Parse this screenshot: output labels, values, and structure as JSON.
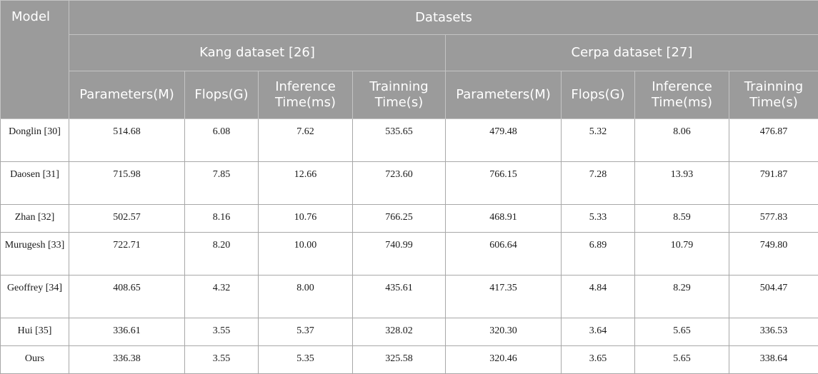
{
  "header": {
    "model": "Model",
    "datasets": "Datasets",
    "groups": [
      "Kang dataset [26]",
      "Cerpa dataset [27]"
    ],
    "metrics": [
      "Parameters(M)",
      "Flops(G)",
      "Inference Time(ms)",
      "Trainning Time(s)"
    ]
  },
  "rows": [
    {
      "model": "Donglin [30]",
      "cells": [
        "514.68",
        "6.08",
        "7.62",
        "535.65",
        "479.48",
        "5.32",
        "8.06",
        "476.87"
      ]
    },
    {
      "model": "Daosen [31]",
      "cells": [
        "715.98",
        "7.85",
        "12.66",
        "723.60",
        "766.15",
        "7.28",
        "13.93",
        "791.87"
      ]
    },
    {
      "model": "Zhan [32]",
      "cells": [
        "502.57",
        "8.16",
        "10.76",
        "766.25",
        "468.91",
        "5.33",
        "8.59",
        "577.83"
      ]
    },
    {
      "model": "Murugesh [33]",
      "cells": [
        "722.71",
        "8.20",
        "10.00",
        "740.99",
        "606.64",
        "6.89",
        "10.79",
        "749.80"
      ]
    },
    {
      "model": "Geoffrey [34]",
      "cells": [
        "408.65",
        "4.32",
        "8.00",
        "435.61",
        "417.35",
        "4.84",
        "8.29",
        "504.47"
      ]
    },
    {
      "model": "Hui [35]",
      "cells": [
        "336.61",
        "3.55",
        "5.37",
        "328.02",
        "320.30",
        "3.64",
        "5.65",
        "336.53"
      ]
    },
    {
      "model": "Ours",
      "cells": [
        "336.38",
        "3.55",
        "5.35",
        "325.58",
        "320.46",
        "3.65",
        "5.65",
        "338.64"
      ]
    }
  ]
}
